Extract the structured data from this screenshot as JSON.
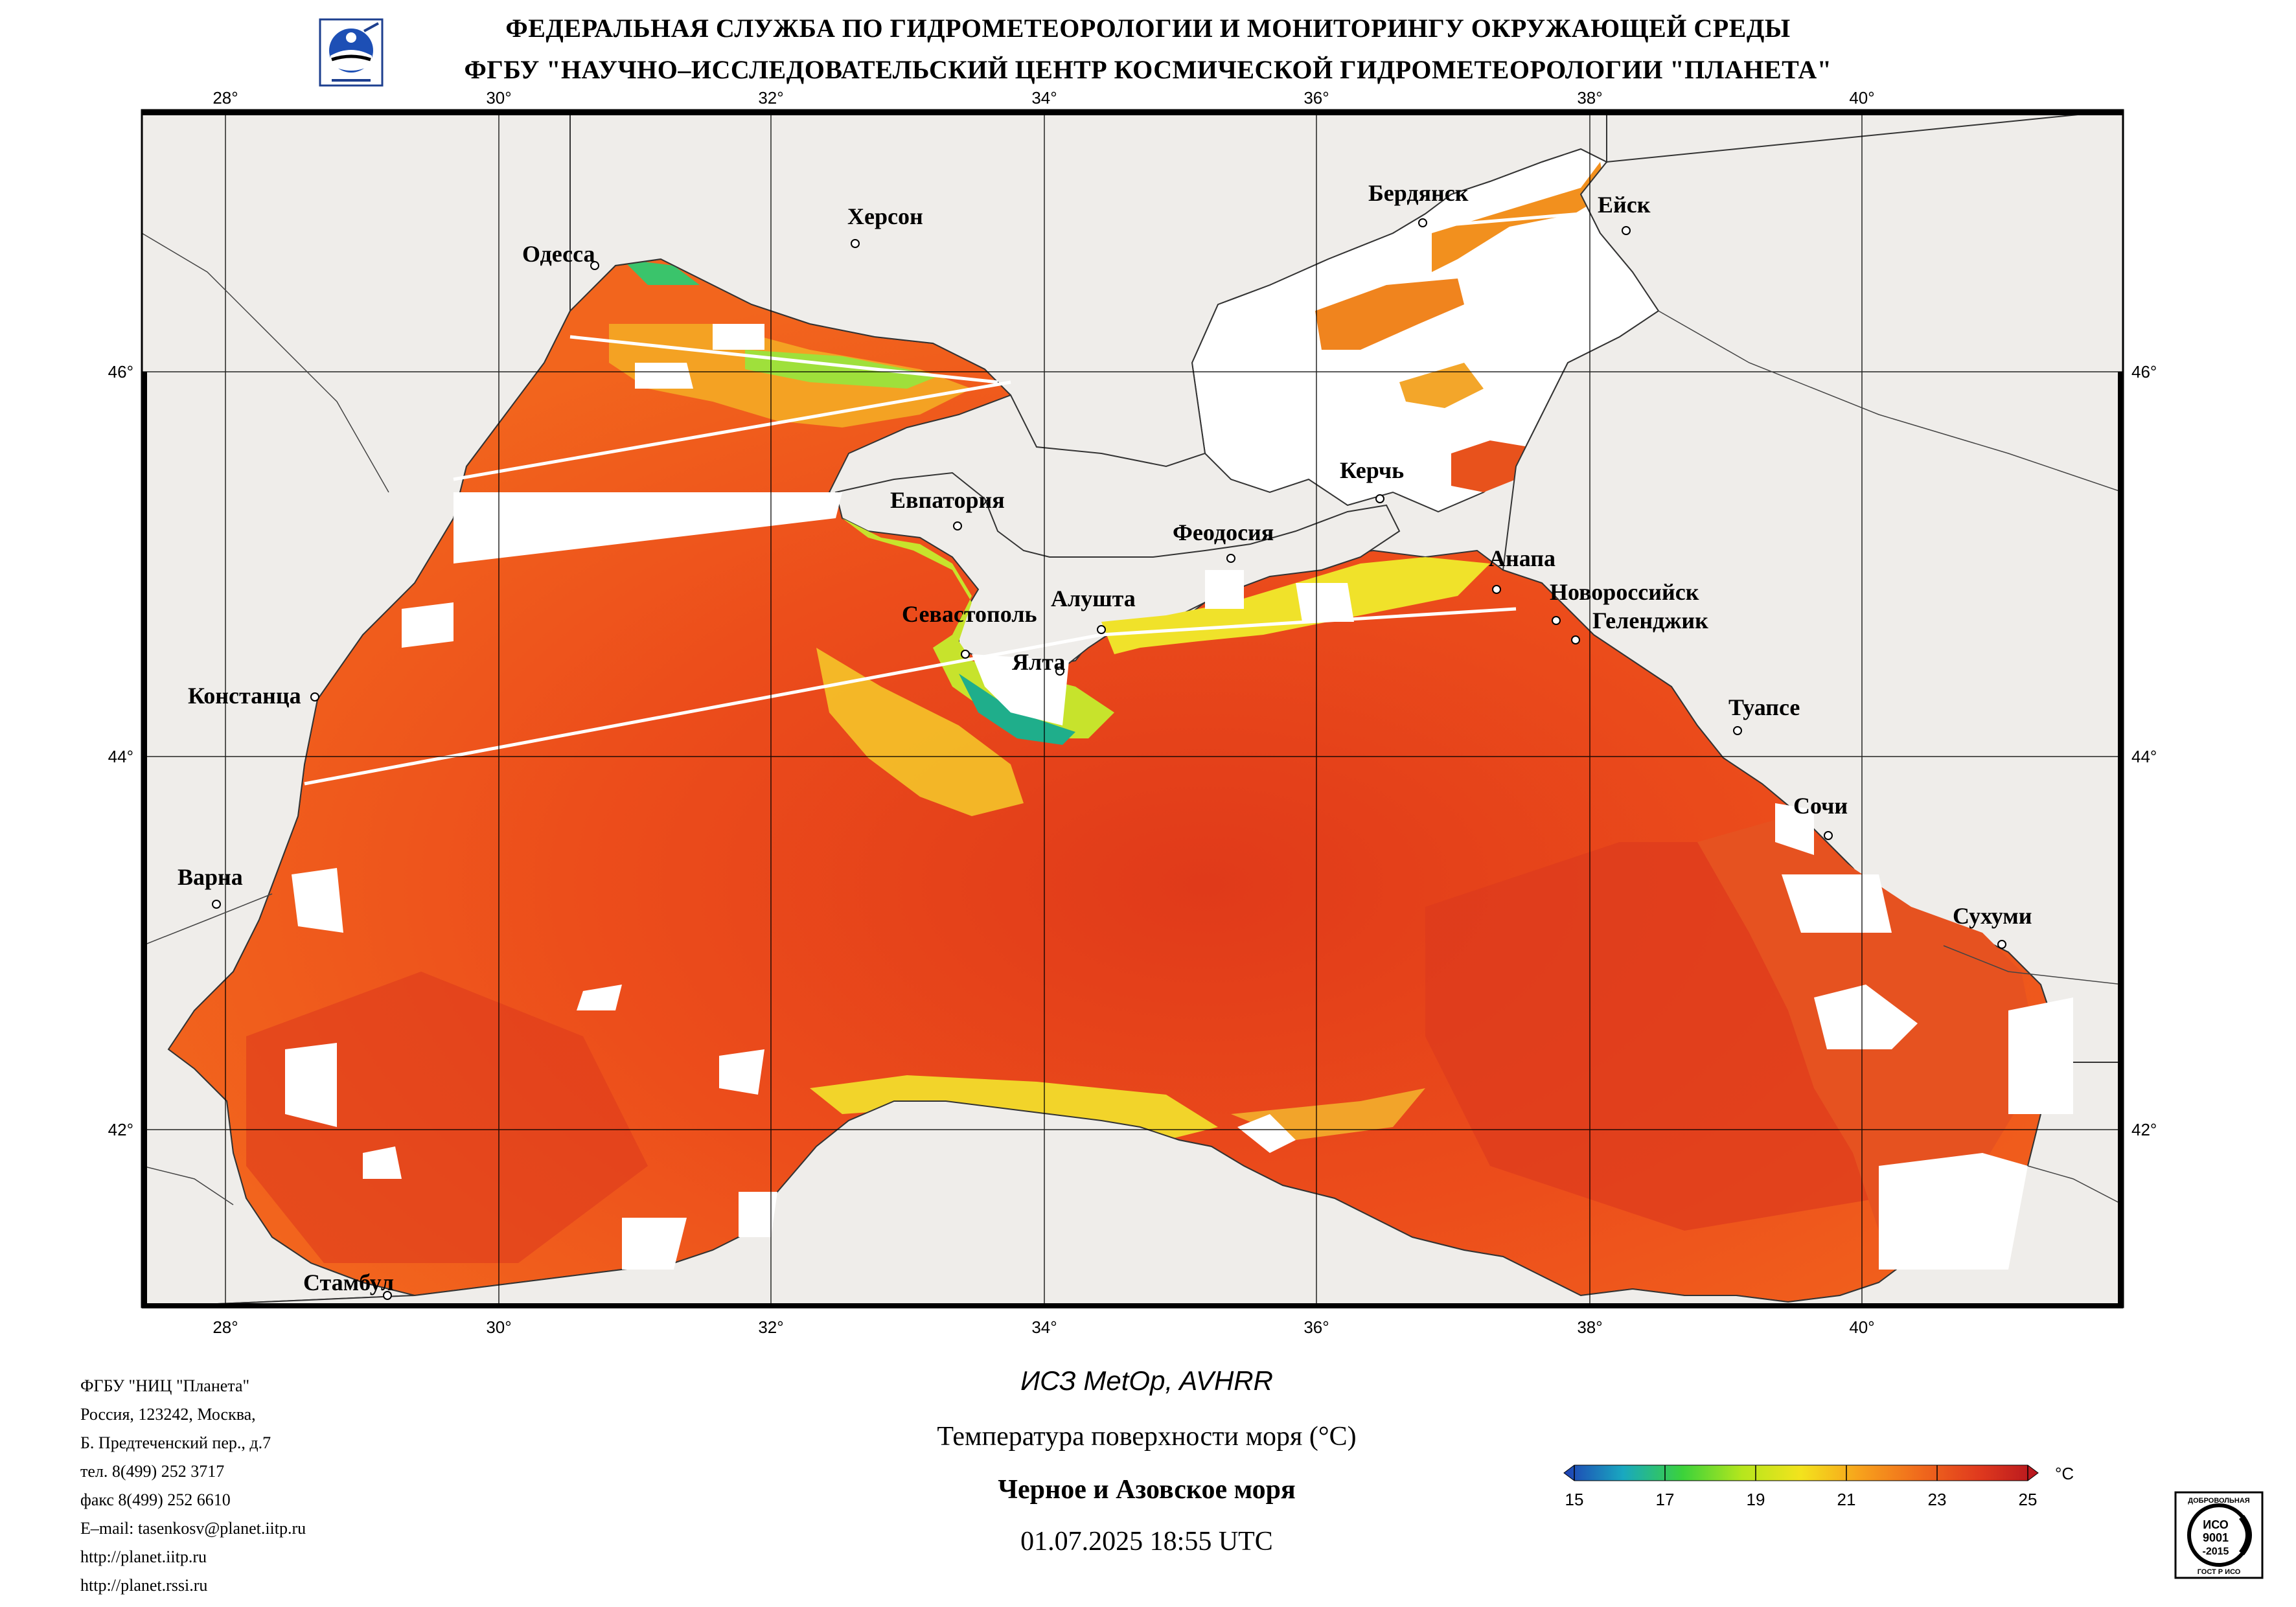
{
  "header": {
    "line1": "ФЕДЕРАЛЬНАЯ СЛУЖБА ПО ГИДРОМЕТЕОРОЛОГИИ И МОНИТОРИНГУ ОКРУЖАЮЩЕЙ СРЕДЫ",
    "line2": "ФГБУ \"НАУЧНО–ИССЛЕДОВАТЕЛЬСКИЙ ЦЕНТР КОСМИЧЕСКОЙ ГИДРОМЕТЕОРОЛОГИИ \"ПЛАНЕТА\"",
    "logo_icon": "planeta-logo-icon"
  },
  "map": {
    "lon_labels": [
      "28°",
      "30°",
      "32°",
      "34°",
      "36°",
      "38°",
      "40°"
    ],
    "lat_labels": [
      "46°",
      "44°",
      "42°"
    ],
    "colors": {
      "land": "#efedea",
      "cloud": "#ffffff",
      "sea_warm": "#e8401c",
      "sea_mid": "#f26a1e",
      "frame": "#000000"
    },
    "cities": [
      {
        "name": "Одесса"
      },
      {
        "name": "Херсон"
      },
      {
        "name": "Бердянск"
      },
      {
        "name": "Ейск"
      },
      {
        "name": "Евпатория"
      },
      {
        "name": "Керчь"
      },
      {
        "name": "Феодосия"
      },
      {
        "name": "Анапа"
      },
      {
        "name": "Новороссийск"
      },
      {
        "name": "Геленджик"
      },
      {
        "name": "Севастополь"
      },
      {
        "name": "Алушта"
      },
      {
        "name": "Ялта"
      },
      {
        "name": "Констанца"
      },
      {
        "name": "Туапсе"
      },
      {
        "name": "Сочи"
      },
      {
        "name": "Варна"
      },
      {
        "name": "Сухуми"
      },
      {
        "name": "Стамбул"
      }
    ]
  },
  "contact": {
    "org": "ФГБУ \"НИЦ \"Планета\"",
    "address1": "Россия, 123242, Москва,",
    "address2": "Б. Предтеченский пер., д.7",
    "phone": "тел. 8(499) 252 3717",
    "fax": "факс 8(499) 252 6610",
    "email": "E–mail: tasenkosv@planet.iitp.ru",
    "url1": "http://planet.iitp.ru",
    "url2": "http://planet.rssi.ru"
  },
  "caption": {
    "satellite": "ИСЗ MetOp, AVHRR",
    "parameter": "Температура поверхности моря (°C)",
    "region": "Черное и Азовское моря",
    "datetime": "01.07.2025 18:55 UTC"
  },
  "colorbar": {
    "unit": "°C",
    "ticks": [
      "15",
      "17",
      "19",
      "21",
      "23",
      "25"
    ],
    "colors": [
      "#1f3fb4",
      "#19a8c0",
      "#3bd23b",
      "#b5e61d",
      "#f3e31d",
      "#f7a11c",
      "#f06a1c",
      "#e03a1e",
      "#b5151e"
    ]
  },
  "iso_badge": {
    "top_text": "ДОБРОВОЛЬНАЯ",
    "line1": "ИСО",
    "line2": "9001",
    "line3": "-2015",
    "bottom_text": "ГОСТ Р ИСО"
  }
}
